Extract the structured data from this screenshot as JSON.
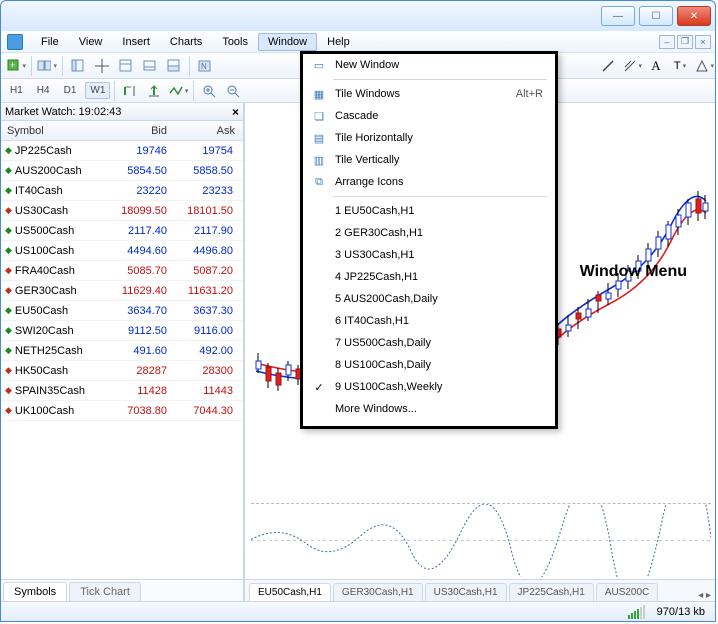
{
  "menus": [
    "File",
    "View",
    "Insert",
    "Charts",
    "Tools",
    "Window",
    "Help"
  ],
  "active_menu": "Window",
  "timeframes": [
    "H1",
    "H4",
    "D1",
    "W1"
  ],
  "selected_tf": "W1",
  "market_watch": {
    "title": "Market Watch: 19:02:43",
    "cols": [
      "Symbol",
      "Bid",
      "Ask"
    ],
    "rows": [
      {
        "dir": "up",
        "sym": "JP225Cash",
        "bid": "19746",
        "ask": "19754",
        "c": "blue"
      },
      {
        "dir": "up",
        "sym": "AUS200Cash",
        "bid": "5854.50",
        "ask": "5858.50",
        "c": "blue"
      },
      {
        "dir": "up",
        "sym": "IT40Cash",
        "bid": "23220",
        "ask": "23233",
        "c": "blue"
      },
      {
        "dir": "dn",
        "sym": "US30Cash",
        "bid": "18099.50",
        "ask": "18101.50",
        "c": "red"
      },
      {
        "dir": "up",
        "sym": "US500Cash",
        "bid": "2117.40",
        "ask": "2117.90",
        "c": "blue"
      },
      {
        "dir": "up",
        "sym": "US100Cash",
        "bid": "4494.60",
        "ask": "4496.80",
        "c": "blue"
      },
      {
        "dir": "dn",
        "sym": "FRA40Cash",
        "bid": "5085.70",
        "ask": "5087.20",
        "c": "red"
      },
      {
        "dir": "dn",
        "sym": "GER30Cash",
        "bid": "11629.40",
        "ask": "11631.20",
        "c": "red"
      },
      {
        "dir": "up",
        "sym": "EU50Cash",
        "bid": "3634.70",
        "ask": "3637.30",
        "c": "blue"
      },
      {
        "dir": "up",
        "sym": "SWI20Cash",
        "bid": "9112.50",
        "ask": "9116.00",
        "c": "blue"
      },
      {
        "dir": "up",
        "sym": "NETH25Cash",
        "bid": "491.60",
        "ask": "492.00",
        "c": "blue"
      },
      {
        "dir": "dn",
        "sym": "HK50Cash",
        "bid": "28287",
        "ask": "28300",
        "c": "red"
      },
      {
        "dir": "dn",
        "sym": "SPAIN35Cash",
        "bid": "11428",
        "ask": "11443",
        "c": "red"
      },
      {
        "dir": "dn",
        "sym": "UK100Cash",
        "bid": "7038.80",
        "ask": "7044.30",
        "c": "red"
      }
    ],
    "tabs": [
      "Symbols",
      "Tick Chart"
    ]
  },
  "dropdown": {
    "new_window": "New Window",
    "tile_windows": "Tile Windows",
    "tile_shortcut": "Alt+R",
    "cascade": "Cascade",
    "tile_h": "Tile Horizontally",
    "tile_v": "Tile Vertically",
    "arrange": "Arrange Icons",
    "wins": [
      "1 EU50Cash,H1",
      "2 GER30Cash,H1",
      "3 US30Cash,H1",
      "4 JP225Cash,H1",
      "5 AUS200Cash,Daily",
      "6 IT40Cash,H1",
      "7 US500Cash,Daily",
      "8 US100Cash,Daily",
      "9 US100Cash,Weekly"
    ],
    "checked": 8,
    "more": "More Windows..."
  },
  "annotation": "Window Menu",
  "chart_tabs": [
    "EU50Cash,H1",
    "GER30Cash,H1",
    "US30Cash,H1",
    "JP225Cash,H1",
    "AUS200C"
  ],
  "status": "970/13 kb",
  "chart_style": {
    "up_color": "#1030d0",
    "dn_color": "#e02020",
    "ma_blue": "#1030d0",
    "ma_red": "#e02020",
    "indic_color": "#3a6aa0",
    "bg": "#ffffff"
  }
}
